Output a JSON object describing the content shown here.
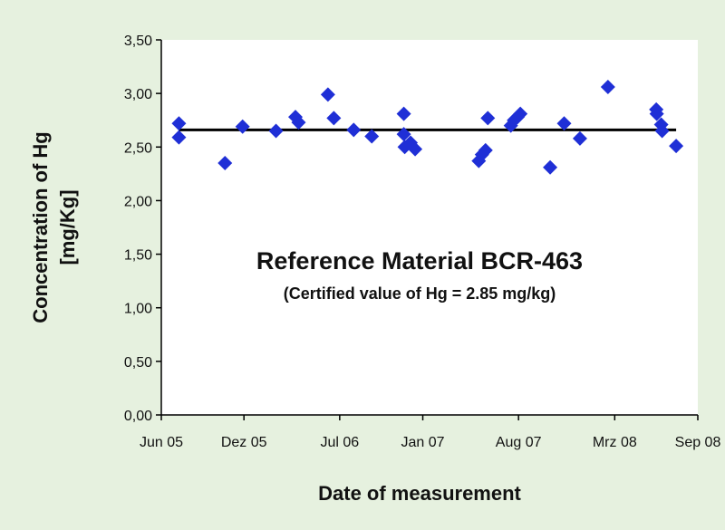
{
  "colors": {
    "background": "#e6f1df",
    "plot_area": "#ffffff",
    "marker": "#1f2fd6",
    "reference_line": "#000000"
  },
  "chart_data": {
    "type": "scatter",
    "title": "Reference Material BCR-463",
    "subtitle": "(Certified value of Hg = 2.85 mg/kg)",
    "xlabel": "Date of measurement",
    "ylabel_line1": "Concentration of Hg",
    "ylabel_line2": "[mg/Kg]",
    "x_tick_labels": [
      "Jun 05",
      "Dez 05",
      "Jul 06",
      "Jan 07",
      "Aug 07",
      "Mrz 08",
      "Sep 08"
    ],
    "x_ticks": [
      "2005-06-01",
      "2005-12-01",
      "2006-07-01",
      "2007-01-01",
      "2007-08-01",
      "2008-03-01",
      "2008-09-01"
    ],
    "xlim": [
      "2005-06-01",
      "2008-09-01"
    ],
    "y_tick_labels": [
      "0,00",
      "0,50",
      "1,00",
      "1,50",
      "2,00",
      "2,50",
      "3,00",
      "3,50"
    ],
    "y_ticks": [
      0,
      0.5,
      1.0,
      1.5,
      2.0,
      2.5,
      3.0,
      3.5
    ],
    "ylim": [
      0,
      3.5
    ],
    "grid": false,
    "legend": "none",
    "marker": "diamond",
    "reference_line": {
      "y": 2.66,
      "x_start": "2005-07-10",
      "x_end": "2008-07-15"
    },
    "points": [
      {
        "x": "2005-07-10",
        "y": 2.72
      },
      {
        "x": "2005-07-10",
        "y": 2.59
      },
      {
        "x": "2005-10-20",
        "y": 2.35
      },
      {
        "x": "2005-11-28",
        "y": 2.69
      },
      {
        "x": "2006-02-10",
        "y": 2.65
      },
      {
        "x": "2006-03-25",
        "y": 2.78
      },
      {
        "x": "2006-04-01",
        "y": 2.73
      },
      {
        "x": "2006-06-05",
        "y": 2.99
      },
      {
        "x": "2006-06-18",
        "y": 2.77
      },
      {
        "x": "2006-08-01",
        "y": 2.66
      },
      {
        "x": "2006-09-10",
        "y": 2.6
      },
      {
        "x": "2006-11-20",
        "y": 2.81
      },
      {
        "x": "2006-11-20",
        "y": 2.62
      },
      {
        "x": "2006-11-22",
        "y": 2.5
      },
      {
        "x": "2006-12-05",
        "y": 2.54
      },
      {
        "x": "2006-12-15",
        "y": 2.48
      },
      {
        "x": "2007-05-05",
        "y": 2.37
      },
      {
        "x": "2007-05-12",
        "y": 2.43
      },
      {
        "x": "2007-05-20",
        "y": 2.47
      },
      {
        "x": "2007-05-25",
        "y": 2.77
      },
      {
        "x": "2007-07-15",
        "y": 2.7
      },
      {
        "x": "2007-07-22",
        "y": 2.75
      },
      {
        "x": "2007-07-30",
        "y": 2.78
      },
      {
        "x": "2007-08-05",
        "y": 2.81
      },
      {
        "x": "2007-10-10",
        "y": 2.31
      },
      {
        "x": "2007-11-10",
        "y": 2.72
      },
      {
        "x": "2007-12-15",
        "y": 2.58
      },
      {
        "x": "2008-02-15",
        "y": 3.06
      },
      {
        "x": "2008-06-01",
        "y": 2.85
      },
      {
        "x": "2008-06-02",
        "y": 2.81
      },
      {
        "x": "2008-06-12",
        "y": 2.71
      },
      {
        "x": "2008-06-14",
        "y": 2.65
      },
      {
        "x": "2008-07-15",
        "y": 2.51
      }
    ]
  }
}
